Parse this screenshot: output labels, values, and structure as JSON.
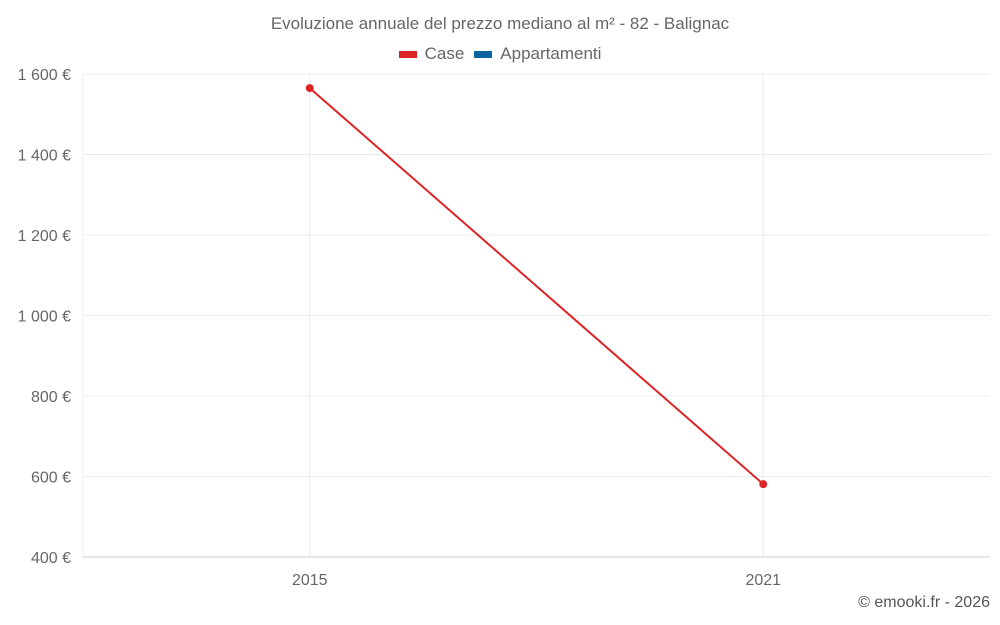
{
  "chart_data": {
    "type": "line",
    "title": "Evoluzione annuale del prezzo mediano al m² - 82 - Balignac",
    "categories": [
      "2015",
      "2021"
    ],
    "series": [
      {
        "name": "Case",
        "color": "#dd2424",
        "values": [
          1565,
          581
        ]
      },
      {
        "name": "Appartamenti",
        "color": "#0b64a0",
        "values": [
          null,
          null
        ]
      }
    ],
    "ylim": [
      400,
      1600
    ],
    "yticks": [
      400,
      600,
      800,
      1000,
      1200,
      1400,
      1600
    ],
    "ytick_labels": [
      "400 €",
      "600 €",
      "800 €",
      "1 000 €",
      "1 200 €",
      "1 400 €",
      "1 600 €"
    ],
    "grid": true,
    "legend_position": "top-center",
    "xlabel": "",
    "ylabel": ""
  },
  "credit": "© emooki.fr - 2026"
}
